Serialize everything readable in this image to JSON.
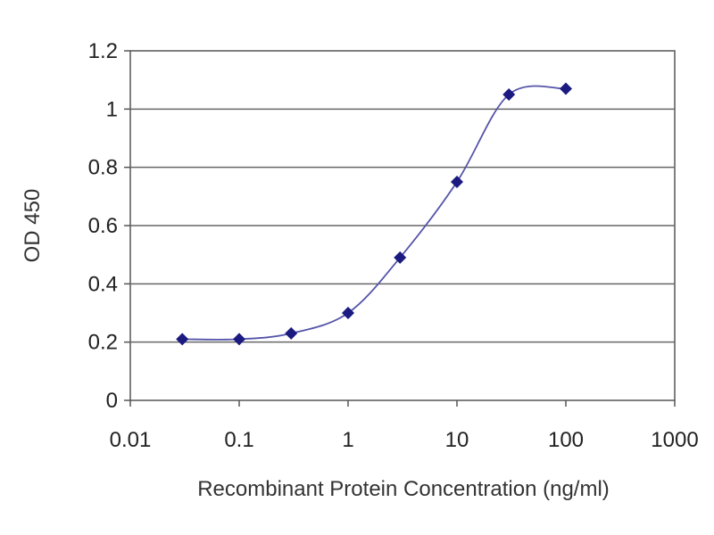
{
  "chart_data": {
    "type": "scatter",
    "title": "",
    "xlabel": "Recombinant Protein Concentration (ng/ml)",
    "ylabel": "OD 450",
    "x_scale": "log",
    "xlim": [
      0.01,
      1000
    ],
    "ylim": [
      0,
      1.2
    ],
    "x_ticks": [
      "0.01",
      "0.1",
      "1",
      "10",
      "100",
      "1000"
    ],
    "y_ticks": [
      "0",
      "0.2",
      "0.4",
      "0.6",
      "0.8",
      "1",
      "1.2"
    ],
    "grid": "horizontal",
    "legend": "none",
    "series": [
      {
        "x": [
          0.03,
          0.1,
          0.3,
          1,
          3,
          10,
          30,
          100
        ],
        "y": [
          0.21,
          0.21,
          0.23,
          0.3,
          0.49,
          0.75,
          1.05,
          1.07
        ],
        "color": "#1a1a80",
        "fit_curve": true
      }
    ]
  }
}
